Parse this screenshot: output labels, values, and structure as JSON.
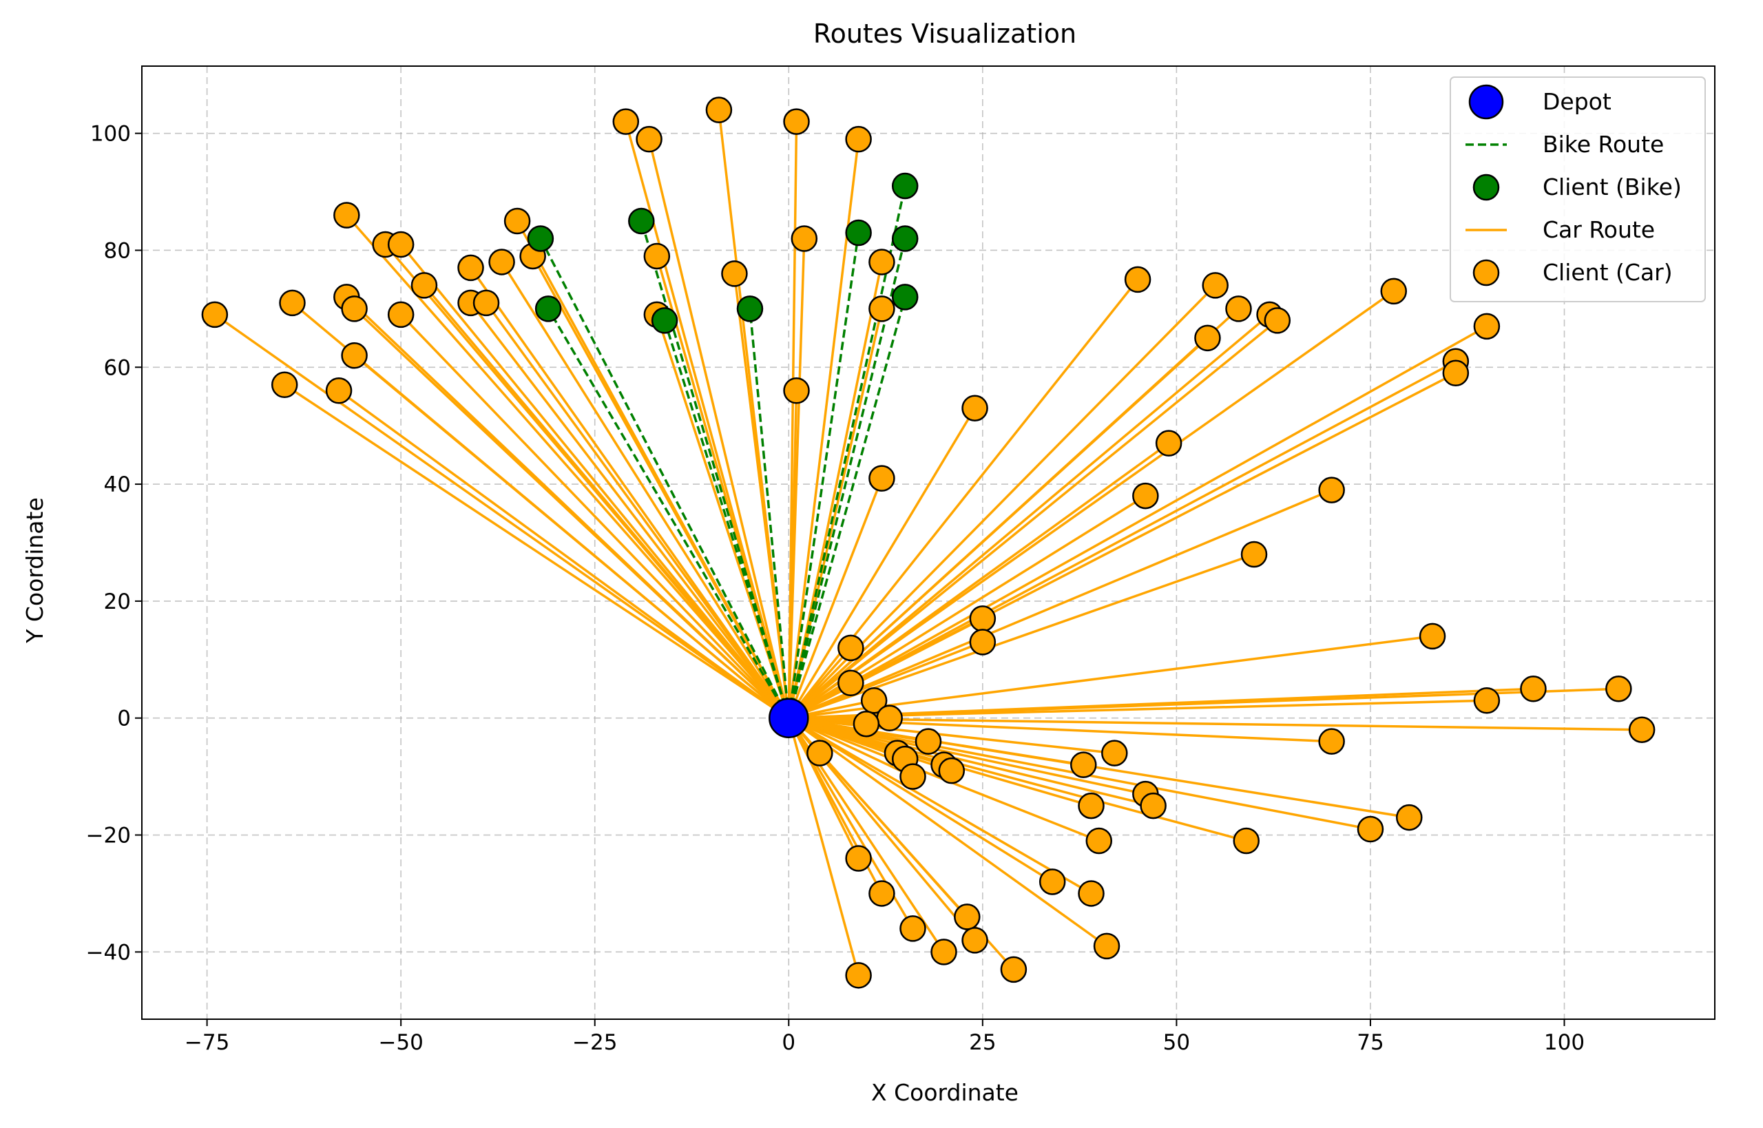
{
  "chart_data": {
    "type": "scatter",
    "title": "Routes Visualization",
    "xlabel": "X Coordinate",
    "ylabel": "Y Coordinate",
    "xlim": [
      -83.4,
      119.4
    ],
    "ylim": [
      -51.5,
      111.5
    ],
    "xticks": [
      -75,
      -50,
      -25,
      0,
      25,
      50,
      75,
      100
    ],
    "yticks": [
      -40,
      -20,
      0,
      20,
      40,
      60,
      80,
      100
    ],
    "xtick_labels": [
      "−75",
      "−50",
      "−25",
      "0",
      "25",
      "50",
      "75",
      "100"
    ],
    "ytick_labels": [
      "−40",
      "−20",
      "0",
      "20",
      "40",
      "60",
      "80",
      "100"
    ],
    "grid": true,
    "legend_position": "top-right",
    "colors": {
      "depot": "#0000ff",
      "bike": "#008000",
      "car": "#ffa500",
      "edge": "#000000",
      "grid": "#b0b0b0"
    },
    "depot": {
      "x": 0,
      "y": 0
    },
    "legend": [
      {
        "label": "Depot",
        "kind": "depot"
      },
      {
        "label": "Bike Route",
        "kind": "bike-line"
      },
      {
        "label": "Client (Bike)",
        "kind": "bike-point"
      },
      {
        "label": "Car Route",
        "kind": "car-line"
      },
      {
        "label": "Client (Car)",
        "kind": "car-point"
      }
    ],
    "bike_clients": [
      [
        -32,
        82
      ],
      [
        -31,
        70
      ],
      [
        -19,
        85
      ],
      [
        -16,
        68
      ],
      [
        -5,
        70
      ],
      [
        9,
        83
      ],
      [
        15,
        91
      ],
      [
        15,
        82
      ],
      [
        15,
        72
      ]
    ],
    "car_clients": [
      [
        -74,
        69
      ],
      [
        -65,
        57
      ],
      [
        -64,
        71
      ],
      [
        -58,
        56
      ],
      [
        -57,
        86
      ],
      [
        -57,
        72
      ],
      [
        -56,
        70
      ],
      [
        -56,
        62
      ],
      [
        -52,
        81
      ],
      [
        -50,
        81
      ],
      [
        -50,
        69
      ],
      [
        -47,
        74
      ],
      [
        -41,
        77
      ],
      [
        -41,
        71
      ],
      [
        -39,
        71
      ],
      [
        -37,
        78
      ],
      [
        -35,
        85
      ],
      [
        -33,
        79
      ],
      [
        -21,
        102
      ],
      [
        -18,
        99
      ],
      [
        -17,
        79
      ],
      [
        -17,
        69
      ],
      [
        -9,
        104
      ],
      [
        -7,
        76
      ],
      [
        1,
        102
      ],
      [
        1,
        56
      ],
      [
        2,
        82
      ],
      [
        9,
        99
      ],
      [
        12,
        78
      ],
      [
        12,
        70
      ],
      [
        12,
        41
      ],
      [
        24,
        53
      ],
      [
        25,
        17
      ],
      [
        25,
        13
      ],
      [
        8,
        12
      ],
      [
        8,
        6
      ],
      [
        11,
        3
      ],
      [
        13,
        0
      ],
      [
        10,
        -1
      ],
      [
        14,
        -6
      ],
      [
        15,
        -7
      ],
      [
        16,
        -10
      ],
      [
        18,
        -4
      ],
      [
        20,
        -8
      ],
      [
        21,
        -9
      ],
      [
        4,
        -6
      ],
      [
        9,
        -24
      ],
      [
        12,
        -30
      ],
      [
        16,
        -36
      ],
      [
        20,
        -40
      ],
      [
        23,
        -34
      ],
      [
        24,
        -38
      ],
      [
        29,
        -43
      ],
      [
        9,
        -44
      ],
      [
        34,
        -28
      ],
      [
        38,
        -8
      ],
      [
        39,
        -15
      ],
      [
        39,
        -30
      ],
      [
        40,
        -21
      ],
      [
        41,
        -39
      ],
      [
        42,
        -6
      ],
      [
        46,
        -13
      ],
      [
        47,
        -15
      ],
      [
        59,
        -21
      ],
      [
        70,
        -4
      ],
      [
        75,
        -19
      ],
      [
        80,
        -17
      ],
      [
        110,
        -2
      ],
      [
        90,
        3
      ],
      [
        96,
        5
      ],
      [
        107,
        5
      ],
      [
        83,
        14
      ],
      [
        60,
        28
      ],
      [
        70,
        39
      ],
      [
        46,
        38
      ],
      [
        49,
        47
      ],
      [
        45,
        75
      ],
      [
        54,
        65
      ],
      [
        55,
        74
      ],
      [
        58,
        70
      ],
      [
        62,
        69
      ],
      [
        63,
        68
      ],
      [
        78,
        73
      ],
      [
        86,
        61
      ],
      [
        86,
        59
      ],
      [
        90,
        67
      ]
    ]
  }
}
